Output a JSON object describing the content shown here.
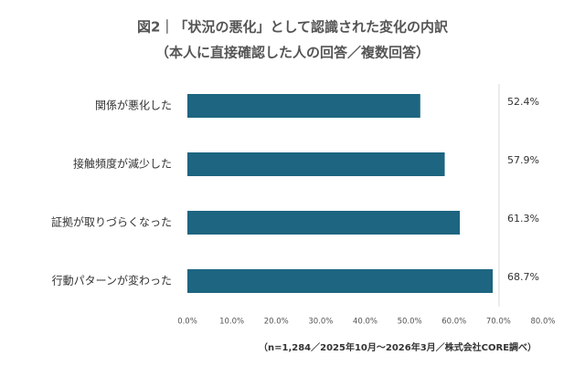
{
  "chart_data": {
    "type": "barh",
    "title": "図2｜「状況の悪化」として認識された変化の内訳",
    "subtitle": "（本人に直接確認した人の回答／複数回答）",
    "categories": [
      "関係が悪化した",
      "接触頻度が減少した",
      "証拠が取りづらくなった",
      "行動パターンが変わった"
    ],
    "values": [
      52.4,
      57.9,
      61.3,
      68.7
    ],
    "value_labels": [
      "52.4%",
      "57.9%",
      "61.3%",
      "68.7%"
    ],
    "color": "#1d6580",
    "xlim": [
      0,
      80
    ],
    "xticks": [
      {
        "value": 0,
        "label": "0.0%"
      },
      {
        "value": 10,
        "label": "10.0%"
      },
      {
        "value": 20,
        "label": "20.0%"
      },
      {
        "value": 30,
        "label": "30.0%"
      },
      {
        "value": 40,
        "label": "40.0%"
      },
      {
        "value": 50,
        "label": "50.0%"
      },
      {
        "value": 60,
        "label": "60.0%"
      },
      {
        "value": 70,
        "label": "70.0%"
      },
      {
        "value": 80,
        "label": "80.0%"
      }
    ],
    "grid": false,
    "note": "（n=1,284／2025年10月～2026年3月／株式会社CORE調べ）"
  }
}
